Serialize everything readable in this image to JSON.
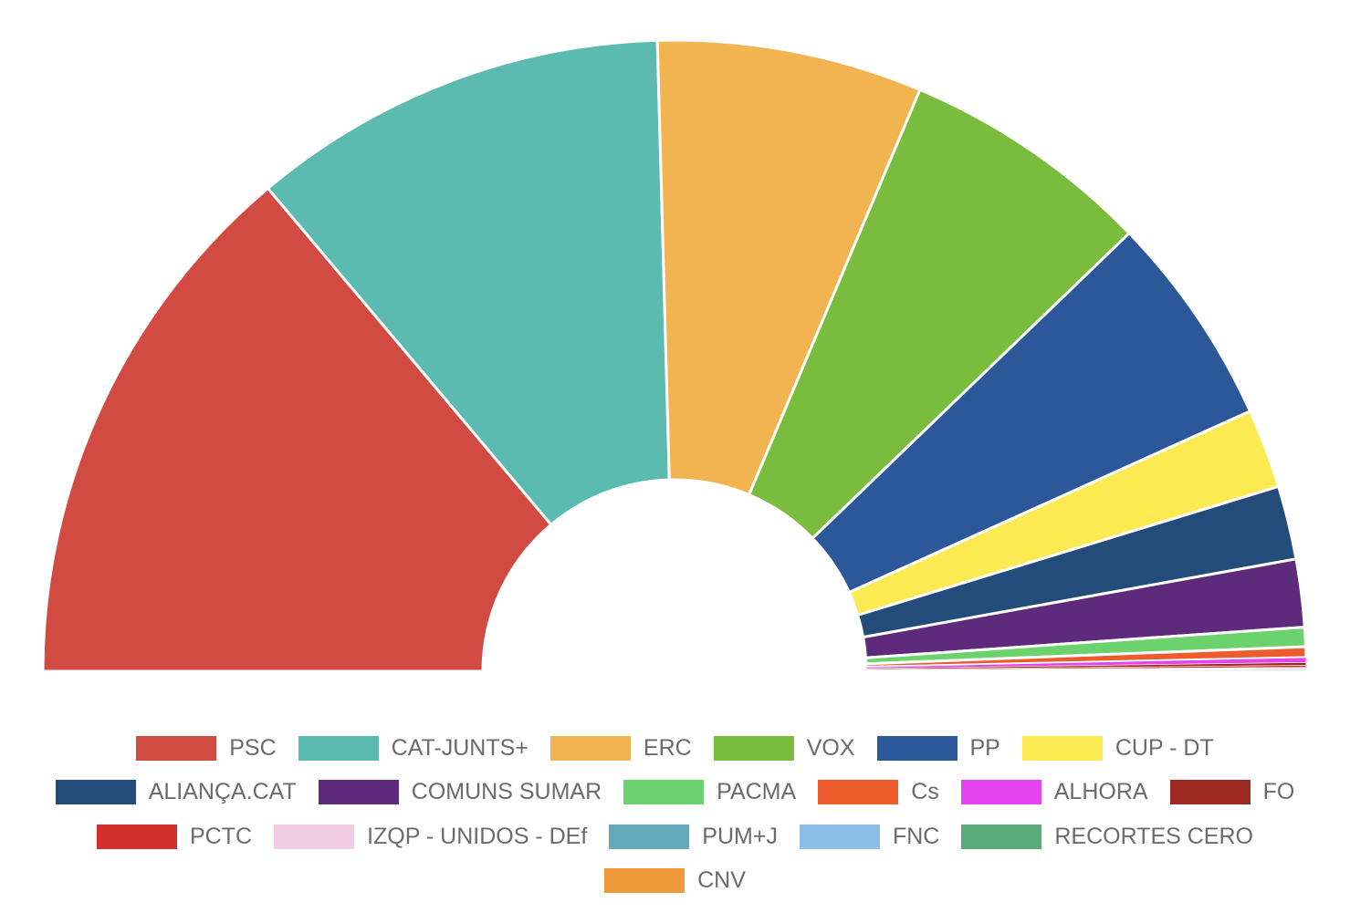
{
  "chart_data": {
    "type": "pie",
    "variant": "semicircle-donut",
    "legend_position": "bottom",
    "series": [
      {
        "name": "PSC",
        "value": 28.0,
        "color": "#d24b42"
      },
      {
        "name": "CAT-JUNTS+",
        "value": 21.6,
        "color": "#5cbbb0"
      },
      {
        "name": "ERC",
        "value": 13.7,
        "color": "#f2b451"
      },
      {
        "name": "VOX",
        "value": 13.0,
        "color": "#7abc3d"
      },
      {
        "name": "PP",
        "value": 11.0,
        "color": "#2c5899"
      },
      {
        "name": "CUP - DT",
        "value": 4.1,
        "color": "#fbea52"
      },
      {
        "name": "ALIANÇA.CAT",
        "value": 3.8,
        "color": "#234c7a"
      },
      {
        "name": "COMUNS SUMAR",
        "value": 3.5,
        "color": "#5e2a7c"
      },
      {
        "name": "PACMA",
        "value": 1.0,
        "color": "#6bd26d"
      },
      {
        "name": "Cs",
        "value": 0.55,
        "color": "#ec5c2c"
      },
      {
        "name": "ALHORA",
        "value": 0.25,
        "color": "#e444ee"
      },
      {
        "name": "FO",
        "value": 0.15,
        "color": "#9c2a22"
      },
      {
        "name": "PCTC",
        "value": 0.1,
        "color": "#d22f2a"
      },
      {
        "name": "IZQP - UNIDOS - DEf",
        "value": 0.05,
        "color": "#f0cbe1"
      },
      {
        "name": "PUM+J",
        "value": 0.04,
        "color": "#64a8bc"
      },
      {
        "name": "FNC",
        "value": 0.04,
        "color": "#8dbde6"
      },
      {
        "name": "RECORTES CERO",
        "value": 0.04,
        "color": "#5aab78"
      },
      {
        "name": "CNV",
        "value": 0.03,
        "color": "#f0993b"
      }
    ]
  }
}
